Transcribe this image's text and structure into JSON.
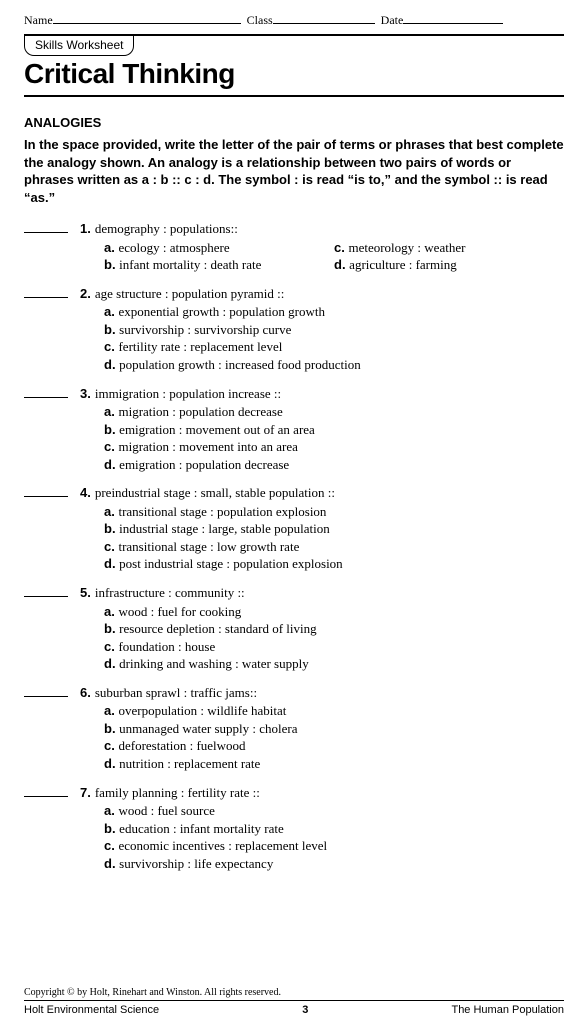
{
  "header": {
    "name_label": "Name",
    "class_label": "Class",
    "date_label": "Date",
    "name_line_w": 188,
    "class_line_w": 102,
    "date_line_w": 100
  },
  "skills_tag": "Skills Worksheet",
  "main_title": "Critical Thinking",
  "section_title": "ANALOGIES",
  "instructions": "In the space provided, write the letter of the pair of terms or phrases that best complete the analogy shown. An analogy is a relationship between two pairs of words or phrases written as a : b :: c : d. The symbol : is read “is to,” and the symbol :: is read “as.”",
  "questions": [
    {
      "num": "1.",
      "stem": "demography : populations::",
      "layout": "two-col",
      "choices": [
        {
          "l": "a.",
          "t": "ecology : atmosphere"
        },
        {
          "l": "c.",
          "t": "meteorology : weather"
        },
        {
          "l": "b.",
          "t": "infant mortality : death rate"
        },
        {
          "l": "d.",
          "t": "agriculture : farming"
        }
      ]
    },
    {
      "num": "2.",
      "stem": "age structure : population pyramid ::",
      "layout": "one-col",
      "choices": [
        {
          "l": "a.",
          "t": "exponential growth : population growth"
        },
        {
          "l": "b.",
          "t": "survivorship : survivorship curve"
        },
        {
          "l": "c.",
          "t": "fertility rate : replacement level"
        },
        {
          "l": "d.",
          "t": "population growth : increased food production"
        }
      ]
    },
    {
      "num": "3.",
      "stem": "immigration : population increase ::",
      "layout": "one-col",
      "choices": [
        {
          "l": "a.",
          "t": "migration : population decrease"
        },
        {
          "l": "b.",
          "t": "emigration : movement out of an area"
        },
        {
          "l": "c.",
          "t": "migration : movement into an area"
        },
        {
          "l": "d.",
          "t": "emigration : population decrease"
        }
      ]
    },
    {
      "num": "4.",
      "stem": "preindustrial stage : small, stable population ::",
      "layout": "one-col",
      "choices": [
        {
          "l": "a.",
          "t": "transitional stage : population explosion"
        },
        {
          "l": "b.",
          "t": "industrial stage : large, stable population"
        },
        {
          "l": "c.",
          "t": "transitional stage : low growth rate"
        },
        {
          "l": "d.",
          "t": "post industrial stage : population explosion"
        }
      ]
    },
    {
      "num": "5.",
      "stem": "infrastructure : community ::",
      "layout": "one-col",
      "choices": [
        {
          "l": "a.",
          "t": "wood : fuel for cooking"
        },
        {
          "l": "b.",
          "t": "resource depletion : standard of living"
        },
        {
          "l": "c.",
          "t": "foundation : house"
        },
        {
          "l": "d.",
          "t": "drinking and washing : water supply"
        }
      ]
    },
    {
      "num": "6.",
      "stem": "suburban sprawl : traffic jams::",
      "layout": "one-col",
      "choices": [
        {
          "l": "a.",
          "t": "overpopulation : wildlife habitat"
        },
        {
          "l": "b.",
          "t": "unmanaged water supply : cholera"
        },
        {
          "l": "c.",
          "t": "deforestation : fuelwood"
        },
        {
          "l": "d.",
          "t": "nutrition : replacement rate"
        }
      ]
    },
    {
      "num": "7.",
      "stem": "family planning : fertility rate ::",
      "layout": "one-col",
      "choices": [
        {
          "l": "a.",
          "t": "wood : fuel source"
        },
        {
          "l": "b.",
          "t": "education : infant mortality rate"
        },
        {
          "l": "c.",
          "t": "economic incentives : replacement level"
        },
        {
          "l": "d.",
          "t": "survivorship : life expectancy"
        }
      ]
    }
  ],
  "footer": {
    "copyright": "Copyright © by Holt, Rinehart and Winston. All rights reserved.",
    "left": "Holt Environmental Science",
    "page": "3",
    "right": "The Human Population"
  }
}
